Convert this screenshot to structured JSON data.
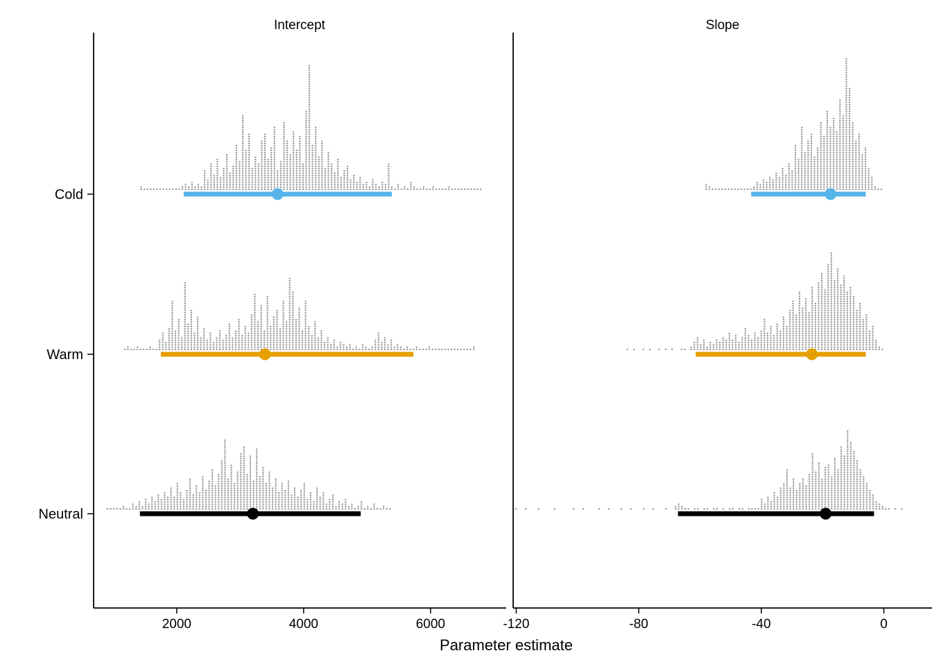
{
  "chart_data": {
    "type": "interval-dotplot",
    "description": "Posterior parameter estimates shown as gray quantile dot stacks over colored median/credible-interval bars, faceted by parameter",
    "xlabel": "Parameter estimate",
    "grid": "off",
    "legend": "none",
    "colors": {
      "cold": "#56B4E9",
      "warm": "#E69F00",
      "neutral": "#000000",
      "dots": "#929292",
      "axis": "#000000"
    },
    "facets": [
      {
        "label": "Intercept",
        "xlim": [
          690,
          7160
        ],
        "ticks": [
          2000,
          4000,
          6000
        ],
        "tick_labels": [
          "2000",
          "4000",
          "6000"
        ]
      },
      {
        "label": "Slope",
        "xlim": [
          -121,
          13
        ],
        "ticks": [
          -120,
          -80,
          -40,
          0
        ],
        "tick_labels": [
          "-120",
          "-80",
          "-40",
          "0"
        ]
      }
    ],
    "rows": [
      {
        "label": "Cold",
        "color": "#56B4E9",
        "estimates": {
          "Intercept": {
            "interval_low": 2110,
            "interval_high": 5390,
            "point": 3590,
            "dots": {
              "start": 1440,
              "step": 50,
              "stack_counts": [
                2,
                1,
                1,
                1,
                1,
                1,
                1,
                1,
                1,
                1,
                1,
                1,
                1,
                2,
                3,
                2,
                4,
                2,
                3,
                2,
                9,
                5,
                12,
                7,
                14,
                6,
                10,
                16,
                8,
                11,
                20,
                13,
                33,
                18,
                25,
                10,
                15,
                12,
                22,
                25,
                14,
                19,
                28,
                9,
                13,
                30,
                22,
                16,
                26,
                18,
                24,
                12,
                35,
                55,
                20,
                28,
                15,
                22,
                10,
                17,
                12,
                8,
                14,
                6,
                9,
                11,
                5,
                7,
                4,
                6,
                3,
                4,
                2,
                5,
                3,
                2,
                4,
                3,
                12,
                2,
                1,
                3,
                1,
                2,
                1,
                4,
                2,
                1,
                1,
                2,
                1,
                1,
                2,
                1,
                1,
                1,
                1,
                2,
                1,
                1,
                1,
                1,
                1,
                1,
                1,
                1,
                1,
                1
              ]
            }
          },
          "Slope": {
            "interval_low": -43.3,
            "interval_high": -5.9,
            "point": -17.4,
            "dots": {
              "start": -58.0,
              "step": 1.04,
              "stack_counts": [
                3,
                2,
                1,
                1,
                1,
                1,
                1,
                1,
                1,
                1,
                1,
                1,
                1,
                1,
                1,
                2,
                4,
                3,
                5,
                4,
                6,
                5,
                8,
                6,
                10,
                7,
                12,
                9,
                20,
                14,
                28,
                17,
                22,
                25,
                15,
                19,
                30,
                24,
                35,
                28,
                32,
                26,
                40,
                33,
                58,
                45,
                30,
                22,
                25,
                16,
                19,
                10,
                6,
                2,
                1,
                1
              ]
            }
          }
        }
      },
      {
        "label": "Warm",
        "color": "#E69F00",
        "estimates": {
          "Intercept": {
            "interval_low": 1750,
            "interval_high": 5730,
            "point": 3390,
            "dots": {
              "start": 1180,
              "step": 50,
              "stack_counts": [
                1,
                2,
                1,
                1,
                2,
                1,
                1,
                1,
                2,
                1,
                1,
                5,
                8,
                4,
                10,
                22,
                9,
                14,
                6,
                30,
                12,
                18,
                8,
                15,
                6,
                10,
                5,
                8,
                4,
                6,
                9,
                5,
                7,
                12,
                6,
                9,
                14,
                7,
                11,
                8,
                16,
                25,
                13,
                20,
                9,
                24,
                11,
                15,
                18,
                10,
                22,
                13,
                32,
                26,
                14,
                19,
                9,
                22,
                11,
                7,
                13,
                6,
                9,
                4,
                6,
                3,
                5,
                2,
                4,
                3,
                2,
                3,
                1,
                2,
                1,
                3,
                2,
                1,
                2,
                5,
                8,
                4,
                6,
                3,
                5,
                2,
                3,
                2,
                1,
                2,
                1,
                1,
                2,
                1,
                1,
                1,
                2,
                1,
                1,
                1,
                1,
                1,
                1,
                1,
                1,
                1,
                1,
                1,
                1,
                1,
                2
              ]
            }
          },
          "Slope": {
            "interval_low": -61.4,
            "interval_high": -5.9,
            "point": -23.5,
            "dots": {
              "start": -83.7,
              "step": 1.04,
              "stack_counts": [
                1,
                0,
                1,
                0,
                0,
                1,
                0,
                1,
                0,
                0,
                1,
                0,
                1,
                0,
                1,
                0,
                0,
                1,
                1,
                0,
                2,
                4,
                6,
                3,
                5,
                2,
                4,
                3,
                5,
                4,
                6,
                5,
                8,
                5,
                7,
                4,
                6,
                10,
                7,
                5,
                8,
                6,
                9,
                14,
                8,
                11,
                7,
                12,
                9,
                15,
                11,
                18,
                22,
                16,
                26,
                19,
                23,
                17,
                28,
                21,
                30,
                34,
                27,
                38,
                43,
                31,
                36,
                29,
                33,
                26,
                28,
                24,
                18,
                21,
                14,
                16,
                9,
                11,
                5,
                2,
                1
              ]
            }
          }
        }
      },
      {
        "label": "Neutral",
        "color": "#000000",
        "estimates": {
          "Intercept": {
            "interval_low": 1420,
            "interval_high": 4900,
            "point": 3200,
            "dots": {
              "start": 910,
              "step": 50,
              "stack_counts": [
                1,
                1,
                1,
                1,
                1,
                2,
                1,
                1,
                3,
                2,
                4,
                2,
                5,
                3,
                6,
                4,
                7,
                5,
                8,
                6,
                10,
                6,
                12,
                8,
                5,
                9,
                14,
                7,
                11,
                8,
                15,
                9,
                13,
                18,
                11,
                16,
                22,
                31,
                14,
                20,
                12,
                17,
                25,
                28,
                16,
                24,
                13,
                27,
                15,
                19,
                12,
                17,
                10,
                14,
                8,
                12,
                9,
                13,
                7,
                10,
                6,
                9,
                12,
                5,
                8,
                4,
                10,
                6,
                8,
                3,
                5,
                7,
                2,
                4,
                3,
                5,
                2,
                3,
                1,
                2,
                4,
                1,
                2,
                1,
                3,
                1,
                1,
                2,
                1,
                1
              ]
            }
          },
          "Slope": {
            "interval_low": -67.2,
            "interval_high": -3.2,
            "point": -19.0,
            "dots": {
              "start": -120.0,
              "step": 1.04,
              "stack_counts": [
                1,
                0,
                0,
                1,
                0,
                0,
                0,
                1,
                0,
                0,
                0,
                0,
                1,
                0,
                0,
                0,
                0,
                0,
                1,
                0,
                0,
                1,
                0,
                0,
                0,
                0,
                1,
                0,
                0,
                1,
                0,
                0,
                0,
                1,
                0,
                0,
                1,
                0,
                0,
                0,
                1,
                0,
                0,
                1,
                0,
                0,
                0,
                1,
                0,
                0,
                2,
                3,
                2,
                1,
                1,
                0,
                1,
                1,
                0,
                1,
                1,
                0,
                1,
                1,
                0,
                1,
                0,
                1,
                1,
                0,
                1,
                1,
                0,
                1,
                1,
                1,
                1,
                5,
                3,
                6,
                4,
                8,
                6,
                10,
                12,
                18,
                10,
                14,
                9,
                12,
                14,
                11,
                16,
                25,
                17,
                21,
                14,
                19,
                20,
                15,
                23,
                18,
                28,
                24,
                35,
                30,
                26,
                22,
                18,
                15,
                12,
                9,
                7,
                4,
                3,
                2,
                1,
                1,
                0,
                1,
                0,
                1
              ]
            }
          }
        }
      }
    ]
  }
}
